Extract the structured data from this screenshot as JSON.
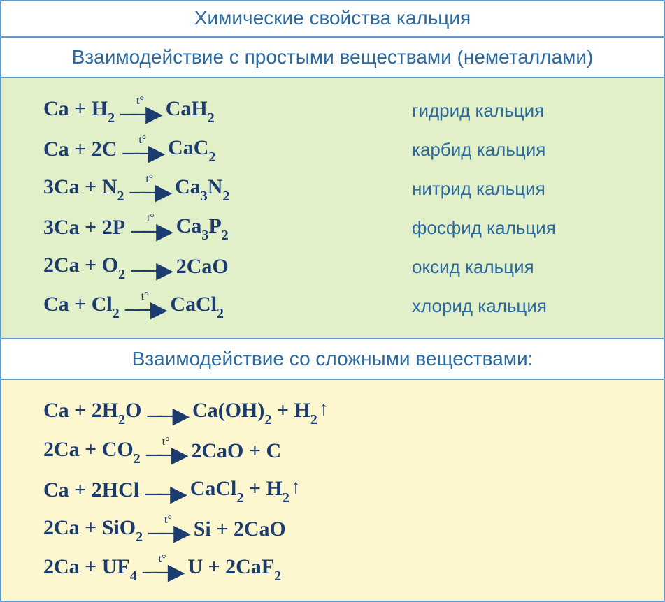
{
  "title": "Химические свойства кальция",
  "sections": [
    {
      "header": "Взаимодействие с простыми веществами (неметаллами)",
      "bg_class": "block-green",
      "bg_color": "#e2f0c9",
      "reactions": [
        {
          "lhs": "Ca + H|2|",
          "cond": "t°",
          "rhs": "CaH|2|",
          "label": "гидрид кальция"
        },
        {
          "lhs": "Ca + 2C",
          "cond": "t°",
          "rhs": "CaC|2|",
          "label": "карбид кальция"
        },
        {
          "lhs": "3Ca + N|2|",
          "cond": "t°",
          "rhs": "Ca|3|N|2|",
          "label": "нитрид кальция"
        },
        {
          "lhs": "3Ca + 2P",
          "cond": "t°",
          "rhs": "Ca|3|P|2|",
          "label": "фосфид кальция"
        },
        {
          "lhs": "2Ca + O|2|",
          "cond": "",
          "rhs": "2CaO",
          "label": "оксид кальция"
        },
        {
          "lhs": "Ca + Cl|2|",
          "cond": "t°",
          "rhs": "CaCl|2|",
          "label": "хлорид кальция"
        }
      ]
    },
    {
      "header": "Взаимодействие со сложными веществами:",
      "bg_class": "block-yellow",
      "bg_color": "#fdf7cf",
      "reactions": [
        {
          "lhs": "Ca + 2H|2|O",
          "cond": "",
          "rhs": "Ca(OH)|2| + H|2|^",
          "label": ""
        },
        {
          "lhs": "2Ca + CO|2|",
          "cond": "t°",
          "rhs": "2CaO + C",
          "label": ""
        },
        {
          "lhs": "Ca + 2HCl",
          "cond": "",
          "rhs": "CaCl|2| + H|2|^",
          "label": ""
        },
        {
          "lhs": "2Ca + SiO|2|",
          "cond": "t°",
          "rhs": "Si + 2CaO",
          "label": ""
        },
        {
          "lhs": "2Ca + UF|4|",
          "cond": "t°",
          "rhs": "U + 2CaF|2|",
          "label": ""
        }
      ]
    }
  ],
  "colors": {
    "border": "#5a9bd4",
    "title_text": "#2b6aa0",
    "formula_text": "#1c3b6e",
    "green_bg": "#e2f0c9",
    "yellow_bg": "#fdf7cf",
    "white": "#ffffff"
  },
  "typography": {
    "title_fontsize": 28,
    "header_fontsize": 28,
    "formula_fontsize": 30,
    "label_fontsize": 26,
    "subscript_fontsize": 20,
    "condition_fontsize": 16,
    "title_font": "Arial",
    "formula_font": "Times New Roman"
  }
}
